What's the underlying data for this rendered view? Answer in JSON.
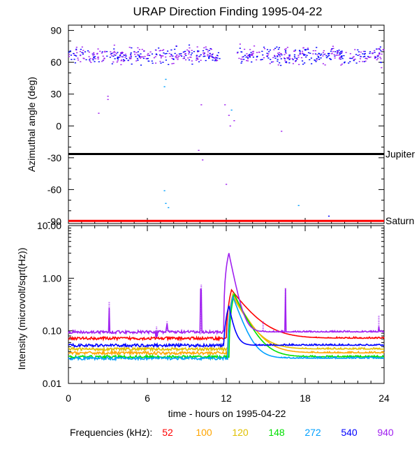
{
  "title": "URAP Direction Finding  1995-04-22",
  "chart_data": [
    {
      "type": "scatter",
      "ylabel": "Azimuthal angle (deg)",
      "xlim": [
        0,
        24
      ],
      "ylim": [
        -92,
        95
      ],
      "yticks": [
        "90",
        "60",
        "30",
        "0",
        "-30",
        "-60",
        "-90"
      ],
      "grid": false,
      "reference_lines": [
        {
          "label": "Jupiter",
          "y": -26.5,
          "color": "#000000"
        },
        {
          "label": "Saturn",
          "y": -89.5,
          "color": "#ff0000"
        }
      ],
      "point_groups": [
        {
          "desc": "main cluster",
          "x_range": [
            0,
            11.5
          ],
          "y_range": [
            55,
            78
          ],
          "frequencies_kHz": [
            540,
            940
          ]
        },
        {
          "desc": "main cluster",
          "x_range": [
            12.8,
            24
          ],
          "y_range": [
            55,
            78
          ],
          "frequencies_kHz": [
            540,
            940
          ]
        }
      ],
      "points": [
        {
          "x": 2.3,
          "y": 12,
          "freq": 940
        },
        {
          "x": 3.0,
          "y": 25,
          "freq": 940
        },
        {
          "x": 3.0,
          "y": 28,
          "freq": 940
        },
        {
          "x": 7.3,
          "y": 37,
          "freq": 272
        },
        {
          "x": 7.4,
          "y": 44,
          "freq": 272
        },
        {
          "x": 7.3,
          "y": -61,
          "freq": 272
        },
        {
          "x": 7.4,
          "y": -73,
          "freq": 272
        },
        {
          "x": 7.6,
          "y": -77,
          "freq": 272
        },
        {
          "x": 9.9,
          "y": -23,
          "freq": 940
        },
        {
          "x": 10.1,
          "y": 20,
          "freq": 940
        },
        {
          "x": 10.2,
          "y": -32,
          "freq": 940
        },
        {
          "x": 12.0,
          "y": -55,
          "freq": 940
        },
        {
          "x": 11.9,
          "y": 20,
          "freq": 940
        },
        {
          "x": 12.2,
          "y": 10,
          "freq": 940
        },
        {
          "x": 12.4,
          "y": 15,
          "freq": 272
        },
        {
          "x": 12.6,
          "y": 5,
          "freq": 940
        },
        {
          "x": 12.3,
          "y": 0,
          "freq": 940
        },
        {
          "x": 16.2,
          "y": -5,
          "freq": 940
        },
        {
          "x": 17.5,
          "y": -75,
          "freq": 272
        },
        {
          "x": 19.8,
          "y": -85,
          "freq": 540
        },
        {
          "x": 23.8,
          "y": 55,
          "freq": 940
        }
      ]
    },
    {
      "type": "line",
      "ylabel": "Intensity (microvolt/sqrt(Hz))",
      "xlabel": "time - hours on 1995-04-22",
      "xlim": [
        0,
        24
      ],
      "xticks": [
        "0",
        "6",
        "12",
        "18",
        "24"
      ],
      "yscale": "log",
      "ylim": [
        0.01,
        10
      ],
      "yticks": [
        "10.00",
        "1.00",
        "0.10",
        "0.01"
      ],
      "grid": false,
      "series": [
        {
          "name": "52",
          "color": "#ff0000",
          "baseline": 0.072,
          "peak": 0.6,
          "peak_time": 12.4,
          "decay_hours": 1.2
        },
        {
          "name": "100",
          "color": "#ffa500",
          "baseline": 0.038,
          "peak": 0.5,
          "peak_time": 12.5,
          "decay_hours": 0.9
        },
        {
          "name": "120",
          "color": "#e0c000",
          "baseline": 0.045,
          "peak": 0.45,
          "peak_time": 12.5,
          "decay_hours": 0.9
        },
        {
          "name": "148",
          "color": "#00e000",
          "baseline": 0.032,
          "peak": 0.5,
          "peak_time": 12.6,
          "decay_hours": 0.8
        },
        {
          "name": "272",
          "color": "#00a0ff",
          "baseline": 0.03,
          "peak": 0.45,
          "peak_time": 12.5,
          "decay_hours": 0.6
        },
        {
          "name": "540",
          "color": "#0000ff",
          "baseline": 0.053,
          "peak": 0.3,
          "peak_time": 12.2,
          "decay_hours": 0.3
        },
        {
          "name": "940",
          "color": "#a020f0",
          "baseline": 0.095,
          "peak": 3.0,
          "peak_time": 12.2,
          "decay_hours": 0.35
        }
      ],
      "bursts": [
        {
          "x": 3.1,
          "freq": 940,
          "peak": 0.35
        },
        {
          "x": 6.7,
          "freq": 940,
          "peak": 0.12
        },
        {
          "x": 7.5,
          "freq": 940,
          "peak": 0.15
        },
        {
          "x": 10.1,
          "freq": 940,
          "peak": 0.75
        },
        {
          "x": 14.8,
          "freq": 940,
          "peak": 0.15
        },
        {
          "x": 16.5,
          "freq": 940,
          "peak": 0.65
        },
        {
          "x": 23.6,
          "freq": 940,
          "peak": 0.2
        }
      ]
    }
  ],
  "legend": {
    "label": "Frequencies (kHz):",
    "items": [
      {
        "text": "52",
        "color": "#ff0000"
      },
      {
        "text": "100",
        "color": "#ffa500"
      },
      {
        "text": "120",
        "color": "#e0c000"
      },
      {
        "text": "148",
        "color": "#00e000"
      },
      {
        "text": "272",
        "color": "#00a0ff"
      },
      {
        "text": "540",
        "color": "#0000ff"
      },
      {
        "text": "940",
        "color": "#a020f0"
      }
    ]
  }
}
